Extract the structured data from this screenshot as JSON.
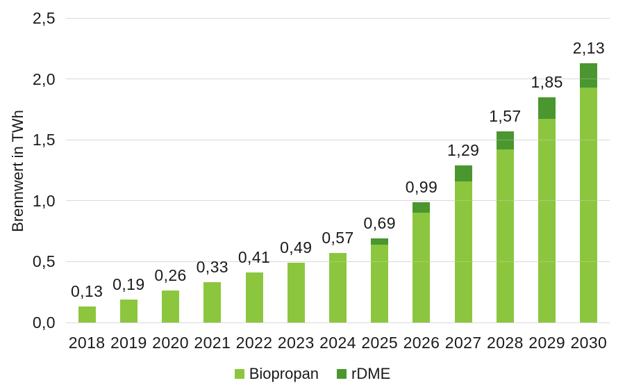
{
  "chart_data": {
    "type": "bar",
    "stacked": true,
    "title": "",
    "ylabel": "Brennwert in TWh",
    "xlabel": "",
    "categories": [
      "2018",
      "2019",
      "2020",
      "2021",
      "2022",
      "2023",
      "2024",
      "2025",
      "2026",
      "2027",
      "2028",
      "2029",
      "2030"
    ],
    "series": [
      {
        "name": "Biopropan",
        "color": "#8CC63E",
        "values": [
          0.13,
          0.19,
          0.26,
          0.33,
          0.41,
          0.49,
          0.57,
          0.64,
          0.9,
          1.16,
          1.42,
          1.67,
          1.93
        ]
      },
      {
        "name": "rDME",
        "color": "#4A962F",
        "values": [
          0,
          0,
          0,
          0,
          0,
          0,
          0,
          0.05,
          0.09,
          0.13,
          0.15,
          0.18,
          0.2
        ]
      }
    ],
    "total_labels": [
      "0,13",
      "0,19",
      "0,26",
      "0,33",
      "0,41",
      "0,49",
      "0,57",
      "0,69",
      "0,99",
      "1,29",
      "1,57",
      "1,85",
      "2,13"
    ],
    "ylim": [
      0,
      2.5
    ],
    "ytick_values": [
      0,
      0.5,
      1.0,
      1.5,
      2.0,
      2.5
    ],
    "ytick_labels": [
      "0,0",
      "0,5",
      "1,0",
      "1,5",
      "2,0",
      "2,5"
    ],
    "grid": true,
    "gridline_color": "#D9D9D9",
    "text_color": "#1a1a1a",
    "background_color": "#FFFFFF",
    "legend_position": "bottom",
    "legend_entries": [
      "Biopropan",
      "rDME"
    ]
  }
}
